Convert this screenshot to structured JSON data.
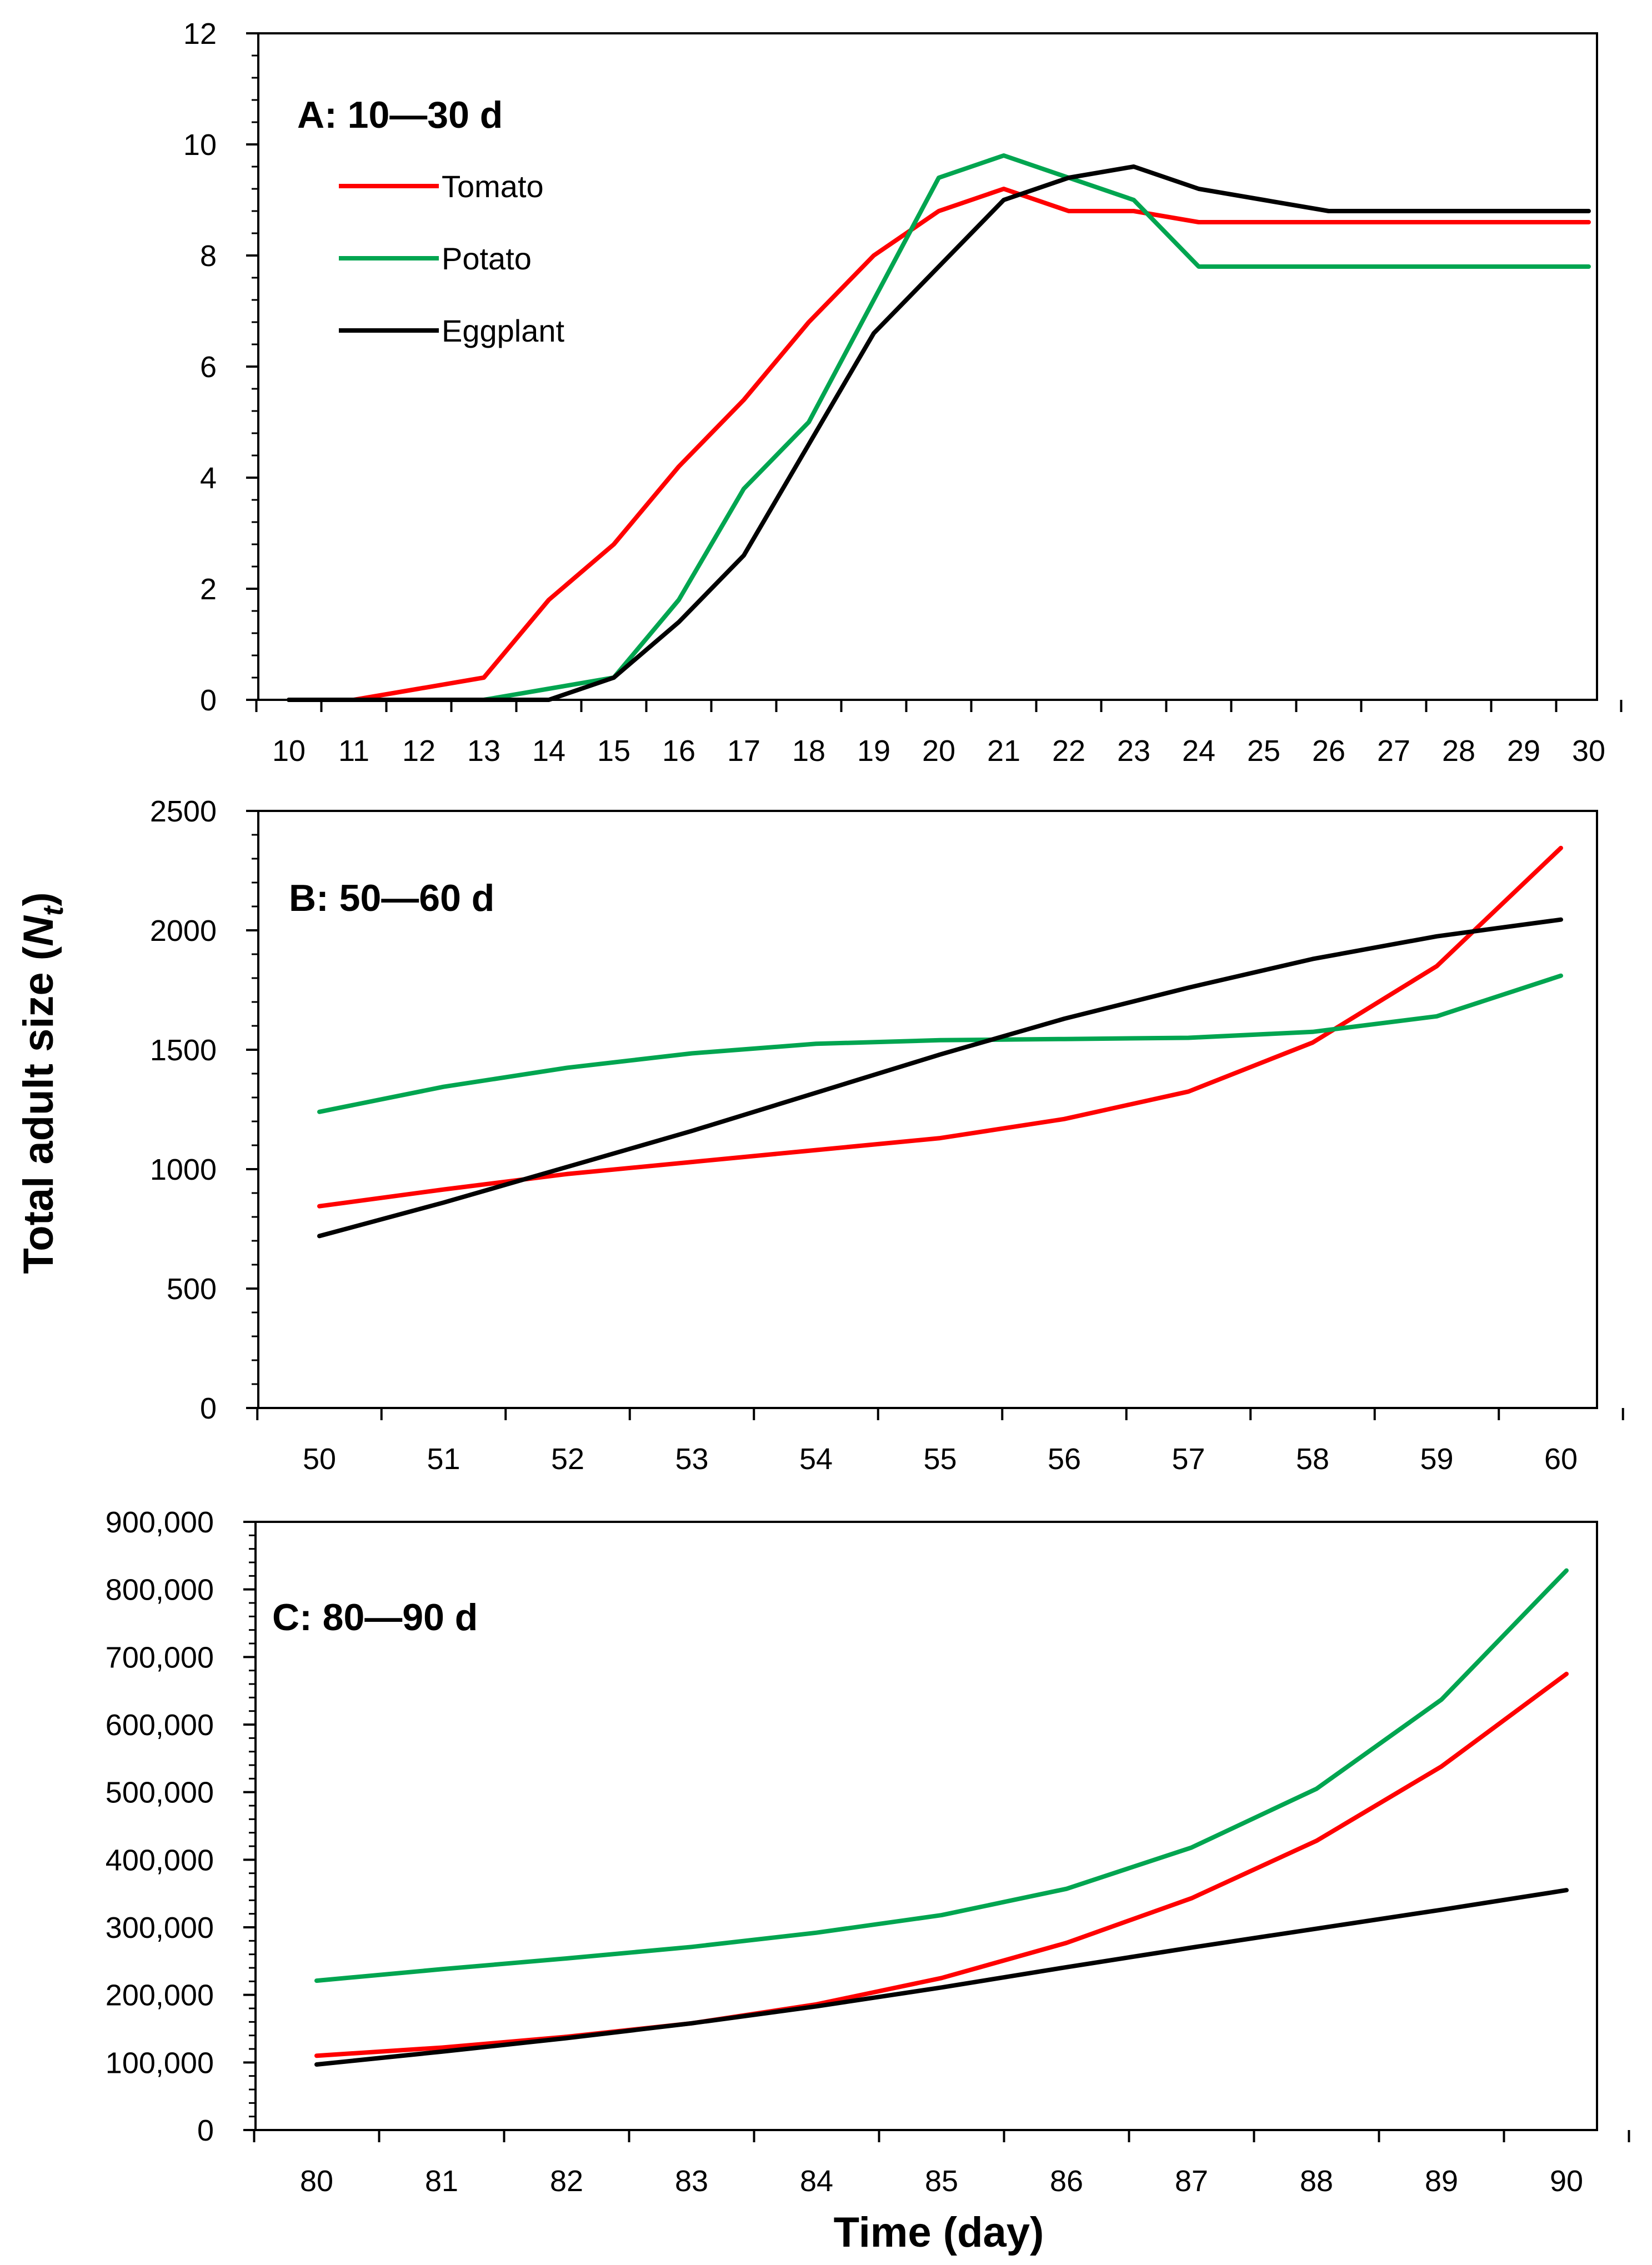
{
  "ylabel_main": "Total adult size (",
  "ylabel_italic": "N",
  "ylabel_sub": "t",
  "ylabel_close": ")",
  "xlabel": "Time (day)",
  "legend": [
    {
      "name": "Tomato",
      "color": "#ff0000"
    },
    {
      "name": "Potato",
      "color": "#00a550"
    },
    {
      "name": "Eggplant",
      "color": "#000000"
    }
  ],
  "chart_data": [
    {
      "type": "line",
      "title": "A: 10—30 d",
      "x": [
        10,
        11,
        12,
        13,
        14,
        15,
        16,
        17,
        18,
        19,
        20,
        21,
        22,
        23,
        24,
        25,
        26,
        27,
        28,
        29,
        30
      ],
      "ylim": [
        0,
        12
      ],
      "yticks": [
        0,
        2,
        4,
        6,
        8,
        10,
        12
      ],
      "ytick_labels": [
        "0",
        "2",
        "4",
        "6",
        "8",
        "10",
        "12"
      ],
      "xtick_labels": [
        "10",
        "11",
        "12",
        "13",
        "14",
        "15",
        "16",
        "17",
        "18",
        "19",
        "20",
        "21",
        "22",
        "23",
        "24",
        "25",
        "26",
        "27",
        "28",
        "29",
        "30"
      ],
      "series": [
        {
          "name": "Tomato",
          "color": "#ff0000",
          "values": [
            0,
            0,
            0.2,
            0.4,
            1.8,
            2.8,
            4.2,
            5.4,
            6.8,
            8.0,
            8.8,
            9.2,
            8.8,
            8.8,
            8.6,
            8.6,
            8.6,
            8.6,
            8.6,
            8.6,
            8.6
          ]
        },
        {
          "name": "Potato",
          "color": "#00a550",
          "values": [
            0,
            0,
            0,
            0,
            0.2,
            0.4,
            1.8,
            3.8,
            5.0,
            7.2,
            9.4,
            9.8,
            9.4,
            9.0,
            7.8,
            7.8,
            7.8,
            7.8,
            7.8,
            7.8,
            7.8
          ]
        },
        {
          "name": "Eggplant",
          "color": "#000000",
          "values": [
            0,
            0,
            0,
            0,
            0,
            0.4,
            1.4,
            2.6,
            4.6,
            6.6,
            7.8,
            9.0,
            9.4,
            9.6,
            9.2,
            9.0,
            8.8,
            8.8,
            8.8,
            8.8,
            8.8
          ]
        }
      ]
    },
    {
      "type": "line",
      "title": "B: 50—60 d",
      "x": [
        50,
        51,
        52,
        53,
        54,
        55,
        56,
        57,
        58,
        59,
        60
      ],
      "ylim": [
        0,
        2500
      ],
      "yticks": [
        0,
        500,
        1000,
        1500,
        2000,
        2500
      ],
      "ytick_labels": [
        "0",
        "500",
        "1000",
        "1500",
        "2000",
        "2500"
      ],
      "xtick_labels": [
        "50",
        "51",
        "52",
        "53",
        "54",
        "55",
        "56",
        "57",
        "58",
        "59",
        "60"
      ],
      "series": [
        {
          "name": "Tomato",
          "color": "#ff0000",
          "values": [
            845,
            915,
            980,
            1030,
            1080,
            1130,
            1210,
            1325,
            1530,
            1850,
            2345
          ]
        },
        {
          "name": "Potato",
          "color": "#00a550",
          "values": [
            1240,
            1345,
            1425,
            1485,
            1525,
            1540,
            1545,
            1550,
            1575,
            1640,
            1810
          ]
        },
        {
          "name": "Eggplant",
          "color": "#000000",
          "values": [
            720,
            860,
            1010,
            1160,
            1320,
            1480,
            1630,
            1760,
            1880,
            1975,
            2045
          ]
        }
      ]
    },
    {
      "type": "line",
      "title": "C: 80—90 d",
      "x": [
        80,
        81,
        82,
        83,
        84,
        85,
        86,
        87,
        88,
        89,
        90
      ],
      "ylim": [
        0,
        900000
      ],
      "yticks": [
        0,
        100000,
        200000,
        300000,
        400000,
        500000,
        600000,
        700000,
        800000,
        900000
      ],
      "ytick_labels": [
        "0",
        "100,000",
        "200,000",
        "300,000",
        "400,000",
        "500,000",
        "600,000",
        "700,000",
        "800,000",
        "900,000"
      ],
      "xtick_labels": [
        "80",
        "81",
        "82",
        "83",
        "84",
        "85",
        "86",
        "87",
        "88",
        "89",
        "90"
      ],
      "series": [
        {
          "name": "Tomato",
          "color": "#ff0000",
          "values": [
            110000,
            122000,
            138000,
            158000,
            186000,
            225000,
            277000,
            343000,
            428000,
            538000,
            675000
          ]
        },
        {
          "name": "Potato",
          "color": "#00a550",
          "values": [
            221000,
            238000,
            254000,
            271000,
            292000,
            318000,
            357000,
            418000,
            505000,
            637000,
            828000
          ]
        },
        {
          "name": "Eggplant",
          "color": "#000000",
          "values": [
            97000,
            116000,
            136000,
            158000,
            183000,
            211000,
            241000,
            270000,
            298000,
            326000,
            355000
          ]
        }
      ]
    }
  ]
}
